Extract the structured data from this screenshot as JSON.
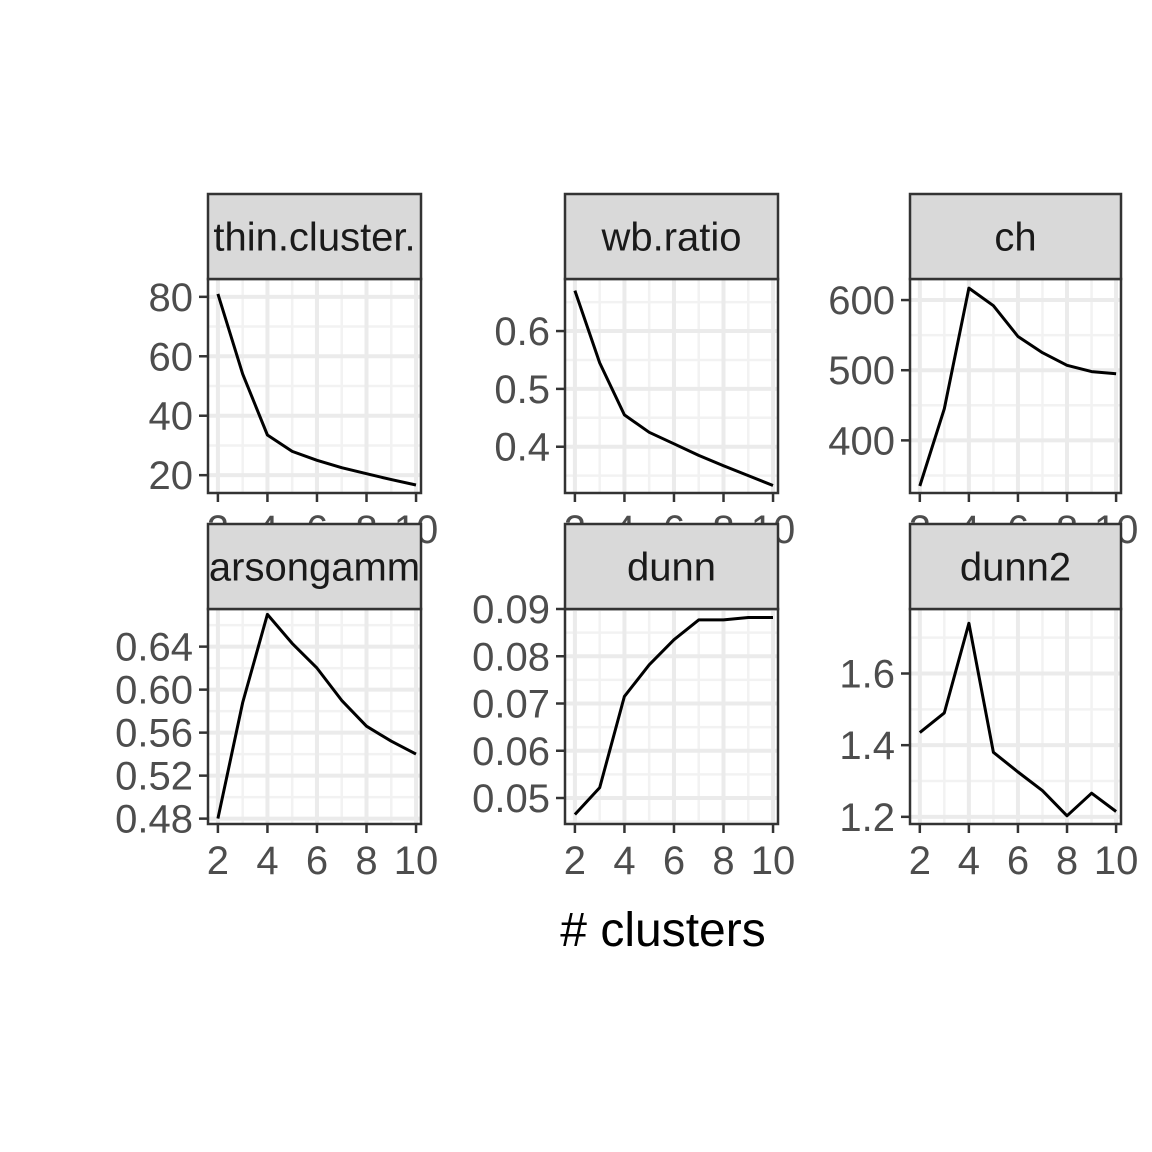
{
  "chart_data": {
    "type": "line",
    "layout": "facet-grid",
    "xlabel": "# clusters",
    "ylabel": "",
    "grid": true,
    "colors": {
      "line": "#000000",
      "strip_fill": "#d9d9d9",
      "panel_border": "#333333",
      "grid_major": "#ebebeb",
      "grid_minor": "#f2f2f2",
      "tick_text": "#4d4d4d"
    },
    "x": [
      2,
      3,
      4,
      5,
      6,
      7,
      8,
      9,
      10
    ],
    "x_ticks": [
      2,
      4,
      6,
      8,
      10
    ],
    "x_tick_labels": [
      "2",
      "4",
      "6",
      "8",
      "10"
    ],
    "panels": [
      {
        "strip": "thin.cluster.",
        "values": [
          81,
          54,
          33.5,
          28,
          25,
          22.5,
          20.5,
          18.5,
          16.7
        ],
        "ylim": [
          14,
          86
        ],
        "y_ticks": [
          20,
          40,
          60,
          80
        ],
        "y_tick_labels": [
          "20",
          "40",
          "60",
          "80"
        ],
        "show_x_ticks": true
      },
      {
        "strip": "wb.ratio",
        "values": [
          0.67,
          0.545,
          0.455,
          0.425,
          0.405,
          0.385,
          0.367,
          0.35,
          0.333
        ],
        "ylim": [
          0.32,
          0.69
        ],
        "y_ticks": [
          0.4,
          0.5,
          0.6
        ],
        "y_tick_labels": [
          "0.4",
          "0.5",
          "0.6"
        ],
        "show_x_ticks": true
      },
      {
        "strip": "ch",
        "values": [
          335,
          445,
          617,
          592,
          548,
          525,
          507,
          498,
          495
        ],
        "ylim": [
          325,
          630
        ],
        "y_ticks": [
          400,
          500,
          600
        ],
        "y_tick_labels": [
          "400",
          "500",
          "600"
        ],
        "show_x_ticks": true
      },
      {
        "strip": "arsongamm",
        "values": [
          0.48,
          0.588,
          0.67,
          0.643,
          0.62,
          0.59,
          0.566,
          0.552,
          0.54
        ],
        "ylim": [
          0.475,
          0.675
        ],
        "y_ticks": [
          0.48,
          0.52,
          0.56,
          0.6,
          0.64
        ],
        "y_tick_labels": [
          "0.48",
          "0.52",
          "0.56",
          "0.60",
          "0.64"
        ],
        "show_x_ticks": true
      },
      {
        "strip": "dunn",
        "values": [
          0.0465,
          0.0522,
          0.0715,
          0.0782,
          0.0835,
          0.0877,
          0.0877,
          0.0882,
          0.0882
        ],
        "ylim": [
          0.0445,
          0.09
        ],
        "y_ticks": [
          0.05,
          0.06,
          0.07,
          0.08,
          0.09
        ],
        "y_tick_labels": [
          "0.05",
          "0.06",
          "0.07",
          "0.08",
          "0.09"
        ],
        "show_x_ticks": true
      },
      {
        "strip": "dunn2",
        "values": [
          1.435,
          1.49,
          1.74,
          1.38,
          1.325,
          1.273,
          1.203,
          1.266,
          1.215
        ],
        "ylim": [
          1.18,
          1.78
        ],
        "y_ticks": [
          1.2,
          1.4,
          1.6
        ],
        "y_tick_labels": [
          "1.2",
          "1.4",
          "1.6"
        ],
        "show_x_ticks": true
      }
    ]
  }
}
